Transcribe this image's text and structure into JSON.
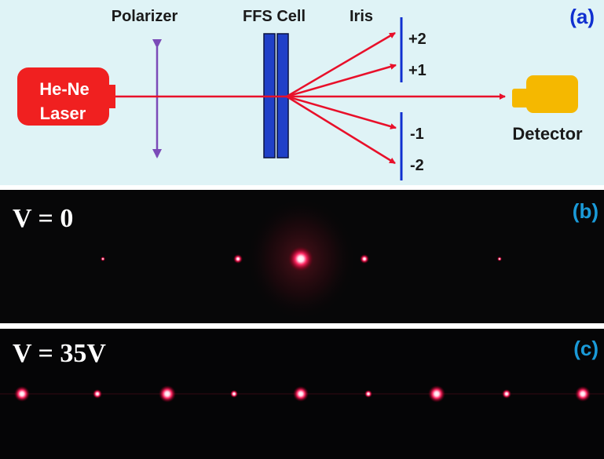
{
  "panel_a": {
    "label": "(a)",
    "laser_line1": "He-Ne",
    "laser_line2": "Laser",
    "polarizer": "Polarizer",
    "cell": "FFS Cell",
    "iris": "Iris",
    "order_p2": "+2",
    "order_p1": "+1",
    "order_m1": "-1",
    "order_m2": "-2",
    "detector": "Detector",
    "colors": {
      "background": "#dff3f6",
      "laser": "#f02020",
      "beam": "#e8102a",
      "cell": "#2040c8",
      "polarizer": "#7b4bb8",
      "iris": "#1030d0",
      "detector": "#f5b800",
      "label": "#1030d0"
    }
  },
  "panel_b": {
    "label": "(b)",
    "voltage": "V = 0",
    "spot_brightness": [
      0.25,
      0.55,
      1.0,
      0.55,
      0.25
    ]
  },
  "panel_c": {
    "label": "(c)",
    "voltage": "V = 35V",
    "spot_brightness": [
      0.95,
      0.55,
      1.0,
      0.5,
      0.95,
      0.5,
      1.0,
      0.55,
      0.95
    ]
  }
}
